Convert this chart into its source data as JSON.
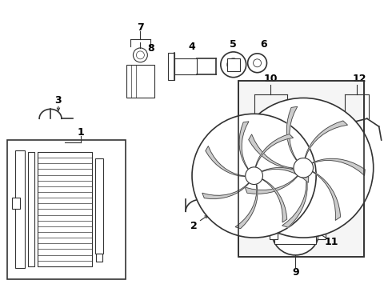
{
  "bg_color": "#ffffff",
  "line_color": "#333333",
  "label_color": "#000000",
  "fig_width": 4.9,
  "fig_height": 3.6,
  "dpi": 100
}
